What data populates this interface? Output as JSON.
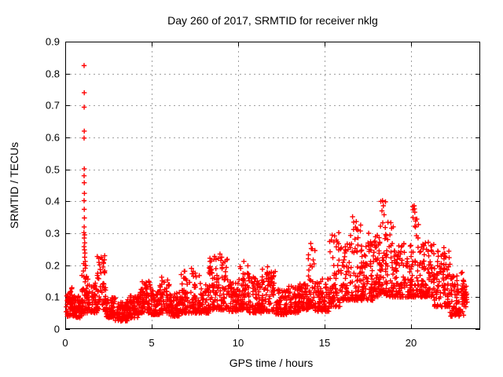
{
  "chart_data": {
    "type": "scatter",
    "title": "Day 260 of 2017, SRMTID for receiver nklg",
    "xlabel": "GPS time / hours",
    "ylabel": "SRMTID / TECUs",
    "xlim": [
      0,
      24
    ],
    "ylim": [
      0,
      0.9
    ],
    "xticks": {
      "values": [
        0,
        5,
        10,
        15,
        20
      ],
      "labels": [
        "0",
        "5",
        "10",
        "15",
        "20"
      ]
    },
    "yticks": {
      "values": [
        0,
        0.1,
        0.2,
        0.3,
        0.4,
        0.5,
        0.6,
        0.7,
        0.8,
        0.9
      ],
      "labels": [
        "0",
        "0.1",
        "0.2",
        "0.3",
        "0.4",
        "0.5",
        "0.6",
        "0.7",
        "0.8",
        "0.9"
      ]
    },
    "grid": true,
    "legend": "none",
    "marker": {
      "shape": "plus",
      "color": "#ff0000",
      "size": 7,
      "stroke_width": 1.4
    },
    "colors": {
      "border": "#000000",
      "grid": "#a0a0a0",
      "text": "#000000",
      "background": "#ffffff"
    },
    "series_name": "SRMTID",
    "seed": 260,
    "band_segments": [
      {
        "x0": 0.05,
        "x1": 0.5,
        "n": 60,
        "ymin": 0.04,
        "ymax": 0.13,
        "skew": 1.6
      },
      {
        "x0": 0.5,
        "x1": 0.95,
        "n": 55,
        "ymin": 0.035,
        "ymax": 0.105,
        "skew": 1.4
      },
      {
        "x0": 0.95,
        "x1": 1.35,
        "n": 60,
        "ymin": 0.05,
        "ymax": 0.2,
        "skew": 2.0
      },
      {
        "x0": 1.35,
        "x1": 1.85,
        "n": 55,
        "ymin": 0.05,
        "ymax": 0.155,
        "skew": 1.6
      },
      {
        "x0": 1.85,
        "x1": 2.35,
        "n": 55,
        "ymin": 0.055,
        "ymax": 0.23,
        "skew": 2.0
      },
      {
        "x0": 2.35,
        "x1": 2.9,
        "n": 60,
        "ymin": 0.035,
        "ymax": 0.1,
        "skew": 1.4
      },
      {
        "x0": 2.9,
        "x1": 3.6,
        "n": 80,
        "ymin": 0.025,
        "ymax": 0.085,
        "skew": 1.3
      },
      {
        "x0": 3.6,
        "x1": 4.3,
        "n": 78,
        "ymin": 0.035,
        "ymax": 0.105,
        "skew": 1.4
      },
      {
        "x0": 4.3,
        "x1": 4.95,
        "n": 70,
        "ymin": 0.05,
        "ymax": 0.15,
        "skew": 1.6
      },
      {
        "x0": 4.95,
        "x1": 5.45,
        "n": 55,
        "ymin": 0.045,
        "ymax": 0.12,
        "skew": 1.5
      },
      {
        "x0": 5.45,
        "x1": 6.05,
        "n": 65,
        "ymin": 0.05,
        "ymax": 0.165,
        "skew": 1.7
      },
      {
        "x0": 6.05,
        "x1": 6.7,
        "n": 70,
        "ymin": 0.04,
        "ymax": 0.115,
        "skew": 1.4
      },
      {
        "x0": 6.7,
        "x1": 7.8,
        "n": 110,
        "ymin": 0.05,
        "ymax": 0.185,
        "skew": 1.8
      },
      {
        "x0": 7.8,
        "x1": 8.3,
        "n": 52,
        "ymin": 0.05,
        "ymax": 0.15,
        "skew": 1.6
      },
      {
        "x0": 8.3,
        "x1": 9.4,
        "n": 115,
        "ymin": 0.06,
        "ymax": 0.23,
        "skew": 1.8
      },
      {
        "x0": 9.4,
        "x1": 10.05,
        "n": 68,
        "ymin": 0.055,
        "ymax": 0.15,
        "skew": 1.5
      },
      {
        "x0": 10.05,
        "x1": 10.65,
        "n": 62,
        "ymin": 0.06,
        "ymax": 0.21,
        "skew": 1.8
      },
      {
        "x0": 10.65,
        "x1": 11.35,
        "n": 72,
        "ymin": 0.05,
        "ymax": 0.165,
        "skew": 1.6
      },
      {
        "x0": 11.35,
        "x1": 12.15,
        "n": 82,
        "ymin": 0.055,
        "ymax": 0.19,
        "skew": 1.7
      },
      {
        "x0": 12.15,
        "x1": 12.85,
        "n": 68,
        "ymin": 0.045,
        "ymax": 0.125,
        "skew": 1.4
      },
      {
        "x0": 12.85,
        "x1": 13.55,
        "n": 72,
        "ymin": 0.05,
        "ymax": 0.135,
        "skew": 1.5
      },
      {
        "x0": 13.55,
        "x1": 14.05,
        "n": 52,
        "ymin": 0.06,
        "ymax": 0.145,
        "skew": 1.5
      },
      {
        "x0": 14.05,
        "x1": 14.45,
        "n": 48,
        "ymin": 0.07,
        "ymax": 0.26,
        "skew": 2.1
      },
      {
        "x0": 14.45,
        "x1": 15.25,
        "n": 80,
        "ymin": 0.055,
        "ymax": 0.16,
        "skew": 1.6
      },
      {
        "x0": 15.25,
        "x1": 16.0,
        "n": 75,
        "ymin": 0.07,
        "ymax": 0.3,
        "skew": 2.0
      },
      {
        "x0": 16.0,
        "x1": 16.5,
        "n": 55,
        "ymin": 0.09,
        "ymax": 0.27,
        "skew": 1.8
      },
      {
        "x0": 16.5,
        "x1": 17.15,
        "n": 70,
        "ymin": 0.09,
        "ymax": 0.35,
        "skew": 2.0
      },
      {
        "x0": 17.15,
        "x1": 17.8,
        "n": 70,
        "ymin": 0.09,
        "ymax": 0.28,
        "skew": 1.8
      },
      {
        "x0": 17.8,
        "x1": 18.1,
        "n": 35,
        "ymin": 0.1,
        "ymax": 0.3,
        "skew": 1.8
      },
      {
        "x0": 18.1,
        "x1": 18.55,
        "n": 55,
        "ymin": 0.11,
        "ymax": 0.4,
        "skew": 2.0
      },
      {
        "x0": 18.55,
        "x1": 19.1,
        "n": 60,
        "ymin": 0.1,
        "ymax": 0.335,
        "skew": 1.9
      },
      {
        "x0": 19.1,
        "x1": 20.05,
        "n": 95,
        "ymin": 0.1,
        "ymax": 0.27,
        "skew": 1.7
      },
      {
        "x0": 20.05,
        "x1": 20.45,
        "n": 45,
        "ymin": 0.1,
        "ymax": 0.385,
        "skew": 2.0
      },
      {
        "x0": 20.45,
        "x1": 21.35,
        "n": 95,
        "ymin": 0.1,
        "ymax": 0.27,
        "skew": 1.7
      },
      {
        "x0": 21.35,
        "x1": 22.25,
        "n": 95,
        "ymin": 0.07,
        "ymax": 0.25,
        "skew": 1.7
      },
      {
        "x0": 22.25,
        "x1": 23.05,
        "n": 88,
        "ymin": 0.04,
        "ymax": 0.185,
        "skew": 1.6
      },
      {
        "x0": 23.05,
        "x1": 23.25,
        "n": 22,
        "ymin": 0.07,
        "ymax": 0.14,
        "skew": 1.3
      }
    ],
    "outlier_points": [
      [
        1.09,
        0.825
      ],
      [
        1.1,
        0.74
      ],
      [
        1.095,
        0.695
      ],
      [
        1.1,
        0.62
      ],
      [
        1.09,
        0.598
      ],
      [
        1.1,
        0.502
      ],
      [
        1.093,
        0.48
      ],
      [
        1.1,
        0.458
      ],
      [
        1.11,
        0.425
      ],
      [
        1.09,
        0.402
      ],
      [
        1.1,
        0.375
      ],
      [
        1.107,
        0.348
      ],
      [
        1.096,
        0.32
      ],
      [
        1.083,
        0.302
      ],
      [
        1.118,
        0.295
      ],
      [
        1.1,
        0.285
      ],
      [
        1.128,
        0.27
      ],
      [
        1.09,
        0.258
      ],
      [
        1.112,
        0.248
      ],
      [
        1.14,
        0.238
      ],
      [
        1.122,
        0.225
      ],
      [
        1.16,
        0.212
      ],
      [
        1.07,
        0.205
      ],
      [
        2.08,
        0.225
      ],
      [
        2.14,
        0.218
      ],
      [
        2.21,
        0.206
      ],
      [
        7.3,
        0.19
      ],
      [
        8.95,
        0.235
      ],
      [
        9.05,
        0.225
      ],
      [
        10.33,
        0.212
      ],
      [
        11.7,
        0.195
      ],
      [
        14.2,
        0.268
      ],
      [
        14.23,
        0.252
      ],
      [
        15.82,
        0.302
      ],
      [
        16.62,
        0.352
      ],
      [
        16.68,
        0.335
      ],
      [
        17.55,
        0.3
      ],
      [
        18.35,
        0.402
      ],
      [
        18.4,
        0.386
      ],
      [
        18.32,
        0.37
      ],
      [
        18.44,
        0.358
      ],
      [
        20.18,
        0.386
      ],
      [
        20.22,
        0.366
      ],
      [
        20.28,
        0.344
      ],
      [
        21.0,
        0.272
      ],
      [
        21.9,
        0.255
      ]
    ]
  }
}
